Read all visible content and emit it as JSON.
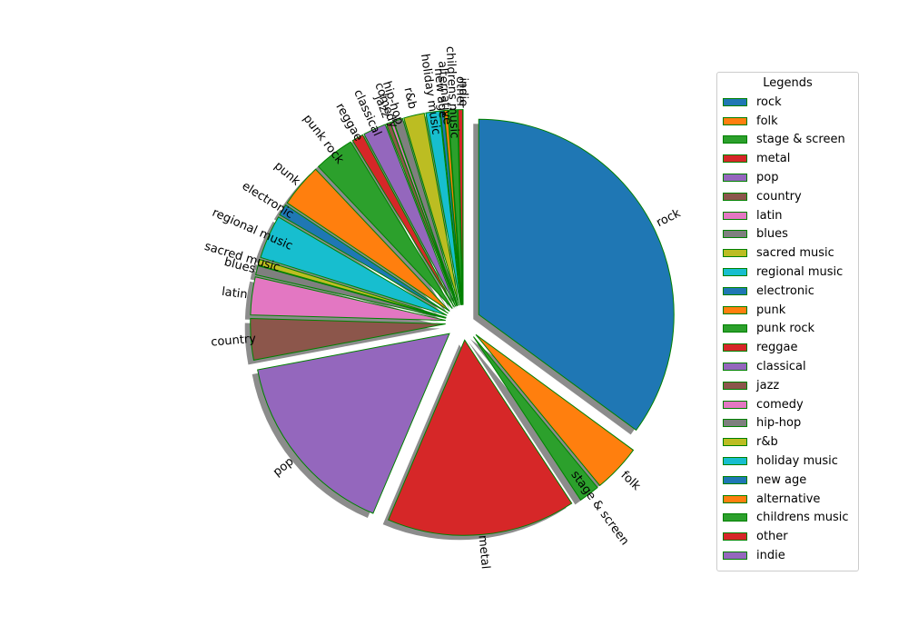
{
  "chart_data": {
    "type": "pie",
    "legend_title": "Legends",
    "legend_position": "right",
    "edge_color": "#008000",
    "shadow": true,
    "start_angle_deg": 90,
    "counterclockwise": false,
    "slices": [
      {
        "label": "rock",
        "value": 37.0,
        "color": "#1f77b4"
      },
      {
        "label": "folk",
        "value": 4.2,
        "color": "#ff7f0e"
      },
      {
        "label": "stage & screen",
        "value": 1.8,
        "color": "#2ca02c"
      },
      {
        "label": "metal",
        "value": 16.5,
        "color": "#d62728"
      },
      {
        "label": "pop",
        "value": 16.5,
        "color": "#9467bd"
      },
      {
        "label": "country",
        "value": 3.6,
        "color": "#8c564b"
      },
      {
        "label": "latin",
        "value": 3.3,
        "color": "#e377c2"
      },
      {
        "label": "blues",
        "value": 0.8,
        "color": "#7f7f7f"
      },
      {
        "label": "sacred music",
        "value": 0.5,
        "color": "#bcbd22"
      },
      {
        "label": "regional music",
        "value": 3.8,
        "color": "#17becf"
      },
      {
        "label": "electronic",
        "value": 1.0,
        "color": "#1f77b4"
      },
      {
        "label": "punk",
        "value": 3.8,
        "color": "#ff7f0e"
      },
      {
        "label": "punk rock",
        "value": 3.5,
        "color": "#2ca02c"
      },
      {
        "label": "reggae",
        "value": 1.0,
        "color": "#d62728"
      },
      {
        "label": "classical",
        "value": 2.0,
        "color": "#9467bd"
      },
      {
        "label": "jazz",
        "value": 0.35,
        "color": "#8c564b"
      },
      {
        "label": "comedy",
        "value": 0.25,
        "color": "#e377c2"
      },
      {
        "label": "hip-hop",
        "value": 0.8,
        "color": "#7f7f7f"
      },
      {
        "label": "r&b",
        "value": 1.8,
        "color": "#bcbd22"
      },
      {
        "label": "holiday music",
        "value": 1.2,
        "color": "#17becf"
      },
      {
        "label": "new age",
        "value": 0.3,
        "color": "#1f77b4"
      },
      {
        "label": "alternative",
        "value": 0.3,
        "color": "#ff7f0e"
      },
      {
        "label": "childrens music",
        "value": 0.8,
        "color": "#2ca02c"
      },
      {
        "label": "other",
        "value": 0.4,
        "color": "#d62728"
      },
      {
        "label": "indie",
        "value": 0.01,
        "color": "#9467bd"
      }
    ]
  }
}
